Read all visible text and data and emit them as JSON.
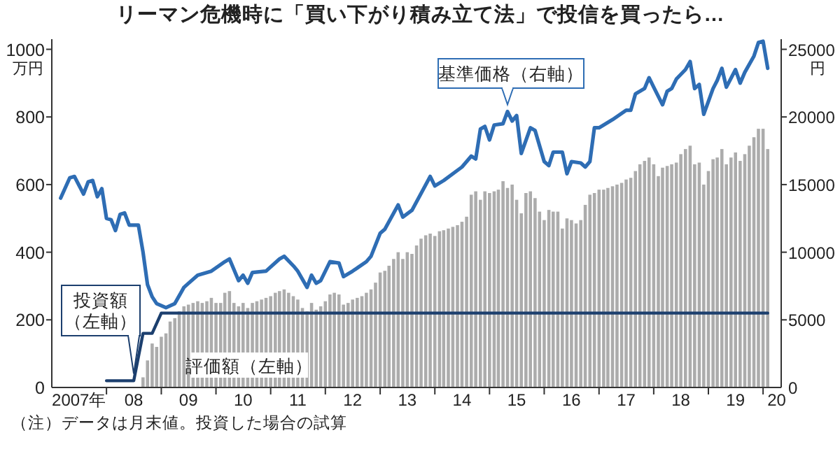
{
  "chart_data": {
    "type": "bar",
    "title": "リーマン危機時に「買い下がり積み立て法」で投信を買ったら…",
    "ylabel": "万円",
    "y2label": "円",
    "annotations": [
      "（注）データは月末値。投資した場合の試算"
    ],
    "xlim": [
      "2007-01",
      "2020-05"
    ],
    "xticks": [
      {
        "value": "2007-07",
        "label": "2007年"
      },
      {
        "value": "2008",
        "label": null
      },
      {
        "value": "2008-07",
        "label": "08"
      },
      {
        "value": "2009",
        "label": null
      },
      {
        "value": "2009-07",
        "label": "09"
      },
      {
        "value": "2010",
        "label": null
      },
      {
        "value": "2010-07",
        "label": "10"
      },
      {
        "value": "2011",
        "label": null
      },
      {
        "value": "2011-07",
        "label": "11"
      },
      {
        "value": "2012",
        "label": null
      },
      {
        "value": "2012-07",
        "label": "12"
      },
      {
        "value": "2013",
        "label": null
      },
      {
        "value": "2013-07",
        "label": "13"
      },
      {
        "value": "2014",
        "label": null
      },
      {
        "value": "2014-07",
        "label": "14"
      },
      {
        "value": "2015",
        "label": null
      },
      {
        "value": "2015-07",
        "label": "15"
      },
      {
        "value": "2016",
        "label": null
      },
      {
        "value": "2016-07",
        "label": "16"
      },
      {
        "value": "2017",
        "label": null
      },
      {
        "value": "2017-07",
        "label": "17"
      },
      {
        "value": "2018",
        "label": null
      },
      {
        "value": "2018-07",
        "label": "18"
      },
      {
        "value": "2019",
        "label": null
      },
      {
        "value": "2019-07",
        "label": "19"
      },
      {
        "value": "2020",
        "label": null
      },
      {
        "value": "2020-04",
        "label": "20"
      }
    ],
    "ylim": [
      0,
      1030
    ],
    "yticks": [
      0,
      200,
      400,
      600,
      800,
      1000
    ],
    "y2lim": [
      0,
      25750
    ],
    "y2ticks": [
      0,
      5000,
      10000,
      15000,
      20000,
      25000
    ],
    "grid": false,
    "x": [
      "2008-09",
      "2008-10",
      "2008-11",
      "2008-12",
      "2009-01",
      "2009-02",
      "2009-03",
      "2009-04",
      "2009-05",
      "2009-06",
      "2009-07",
      "2009-08",
      "2009-09",
      "2009-10",
      "2009-11",
      "2009-12",
      "2010-01",
      "2010-02",
      "2010-03",
      "2010-04",
      "2010-05",
      "2010-06",
      "2010-07",
      "2010-08",
      "2010-09",
      "2010-10",
      "2010-11",
      "2010-12",
      "2011-01",
      "2011-02",
      "2011-03",
      "2011-04",
      "2011-05",
      "2011-06",
      "2011-07",
      "2011-08",
      "2011-09",
      "2011-10",
      "2011-11",
      "2011-12",
      "2012-01",
      "2012-02",
      "2012-03",
      "2012-04",
      "2012-05",
      "2012-06",
      "2012-07",
      "2012-08",
      "2012-09",
      "2012-10",
      "2012-11",
      "2012-12",
      "2013-01",
      "2013-02",
      "2013-03",
      "2013-04",
      "2013-05",
      "2013-06",
      "2013-07",
      "2013-08",
      "2013-09",
      "2013-10",
      "2013-11",
      "2013-12",
      "2014-01",
      "2014-02",
      "2014-03",
      "2014-04",
      "2014-05",
      "2014-06",
      "2014-07",
      "2014-08",
      "2014-09",
      "2014-10",
      "2014-11",
      "2014-12",
      "2015-01",
      "2015-02",
      "2015-03",
      "2015-04",
      "2015-05",
      "2015-06",
      "2015-07",
      "2015-08",
      "2015-09",
      "2015-10",
      "2015-11",
      "2015-12",
      "2016-01",
      "2016-02",
      "2016-03",
      "2016-04",
      "2016-05",
      "2016-06",
      "2016-07",
      "2016-08",
      "2016-09",
      "2016-10",
      "2016-11",
      "2016-12",
      "2017-01",
      "2017-02",
      "2017-03",
      "2017-04",
      "2017-05",
      "2017-06",
      "2017-07",
      "2017-08",
      "2017-09",
      "2017-10",
      "2017-11",
      "2017-12",
      "2018-01",
      "2018-02",
      "2018-03",
      "2018-04",
      "2018-05",
      "2018-06",
      "2018-07",
      "2018-08",
      "2018-09",
      "2018-10",
      "2018-11",
      "2018-12",
      "2019-01",
      "2019-02",
      "2019-03",
      "2019-04",
      "2019-05",
      "2019-06",
      "2019-07",
      "2019-08",
      "2019-09",
      "2019-10",
      "2019-11",
      "2019-12",
      "2020-01",
      "2020-02"
    ],
    "series": [
      {
        "name": "評価額（左軸）",
        "color": "#acacac",
        "values": [
          30,
          80,
          130,
          120,
          150,
          160,
          195,
          205,
          225,
          240,
          245,
          250,
          255,
          250,
          255,
          265,
          250,
          250,
          280,
          285,
          250,
          240,
          250,
          235,
          250,
          255,
          260,
          265,
          270,
          280,
          285,
          290,
          280,
          270,
          260,
          235,
          225,
          250,
          230,
          240,
          255,
          275,
          280,
          275,
          245,
          250,
          260,
          265,
          270,
          280,
          290,
          310,
          340,
          345,
          360,
          380,
          400,
          380,
          400,
          395,
          420,
          440,
          450,
          455,
          448,
          462,
          465,
          470,
          475,
          480,
          490,
          505,
          570,
          580,
          555,
          580,
          575,
          580,
          585,
          610,
          590,
          600,
          555,
          515,
          575,
          580,
          560,
          520,
          495,
          525,
          520,
          520,
          470,
          500,
          495,
          485,
          495,
          540,
          570,
          575,
          585,
          585,
          590,
          595,
          600,
          605,
          615,
          620,
          640,
          660,
          670,
          680,
          660,
          625,
          650,
          655,
          660,
          665,
          690,
          705,
          715,
          660,
          665,
          600,
          640,
          675,
          680,
          705,
          660,
          680,
          695,
          670,
          690,
          715,
          740,
          765,
          765,
          705
        ]
      },
      {
        "name": "投資額（左軸）",
        "type": "line",
        "color": "#1c3f6e",
        "x": [
          "2008-01",
          "2008-07",
          "2008-09",
          "2008-11",
          "2009-01",
          "2020-02"
        ],
        "values": [
          20,
          20,
          160,
          160,
          220,
          220
        ]
      },
      {
        "name": "基準価格（右軸）",
        "type": "line",
        "axis": "y2",
        "color": "#2e6db4",
        "x": [
          "2007-03",
          "2007-05",
          "2007-06",
          "2007-08",
          "2007-09",
          "2007-10",
          "2007-11",
          "2007-12",
          "2008-01",
          "2008-02",
          "2008-03",
          "2008-04",
          "2008-05",
          "2008-06",
          "2008-08",
          "2008-09",
          "2008-10",
          "2008-11",
          "2008-12",
          "2009-02",
          "2009-04",
          "2009-06",
          "2009-07",
          "2009-09",
          "2009-12",
          "2010-03",
          "2010-04",
          "2010-06",
          "2010-07",
          "2010-08",
          "2010-09",
          "2010-12",
          "2011-03",
          "2011-04",
          "2011-06",
          "2011-07",
          "2011-09",
          "2011-10",
          "2011-11",
          "2011-12",
          "2012-02",
          "2012-04",
          "2012-05",
          "2012-07",
          "2012-10",
          "2012-11",
          "2013-01",
          "2013-02",
          "2013-05",
          "2013-06",
          "2013-08",
          "2013-12",
          "2014-01",
          "2014-03",
          "2014-07",
          "2014-09",
          "2014-10",
          "2014-11",
          "2014-12",
          "2015-01",
          "2015-02",
          "2015-04",
          "2015-05",
          "2015-06",
          "2015-07",
          "2015-08",
          "2015-10",
          "2015-11",
          "2016-01",
          "2016-02",
          "2016-03",
          "2016-05",
          "2016-06",
          "2016-07",
          "2016-09",
          "2016-10",
          "2016-11",
          "2016-12",
          "2017-01",
          "2017-04",
          "2017-07",
          "2017-08",
          "2017-09",
          "2017-11",
          "2017-12",
          "2018-01",
          "2018-03",
          "2018-04",
          "2018-05",
          "2018-06",
          "2018-08",
          "2018-09",
          "2018-10",
          "2018-11",
          "2018-12",
          "2019-02",
          "2019-03",
          "2019-04",
          "2019-05",
          "2019-07",
          "2019-08",
          "2019-09",
          "2019-11",
          "2019-12",
          "2020-01",
          "2020-02"
        ],
        "values": [
          14000,
          15500,
          15600,
          14300,
          15200,
          15300,
          14100,
          14700,
          12500,
          12400,
          11600,
          12800,
          12900,
          12000,
          12000,
          10000,
          7600,
          6700,
          6200,
          5900,
          6200,
          7400,
          7700,
          8300,
          8600,
          9300,
          9500,
          7900,
          8300,
          7700,
          8500,
          8600,
          9500,
          9700,
          9000,
          8600,
          7400,
          8300,
          7700,
          7900,
          9300,
          9200,
          8200,
          8600,
          9300,
          9700,
          11400,
          11700,
          13500,
          12600,
          13100,
          15600,
          14900,
          15300,
          16300,
          17100,
          16900,
          19100,
          19300,
          18300,
          19400,
          19500,
          20400,
          19700,
          20100,
          17300,
          19200,
          19000,
          16700,
          16400,
          17400,
          17400,
          15800,
          16700,
          16600,
          16300,
          16700,
          19200,
          19200,
          19800,
          20500,
          20500,
          21700,
          22100,
          22900,
          22200,
          20900,
          21900,
          22100,
          22800,
          23500,
          24100,
          22100,
          22400,
          20200,
          22100,
          22700,
          23600,
          22200,
          23500,
          22500,
          23300,
          24500,
          25500,
          25600,
          23600
        ]
      }
    ]
  }
}
